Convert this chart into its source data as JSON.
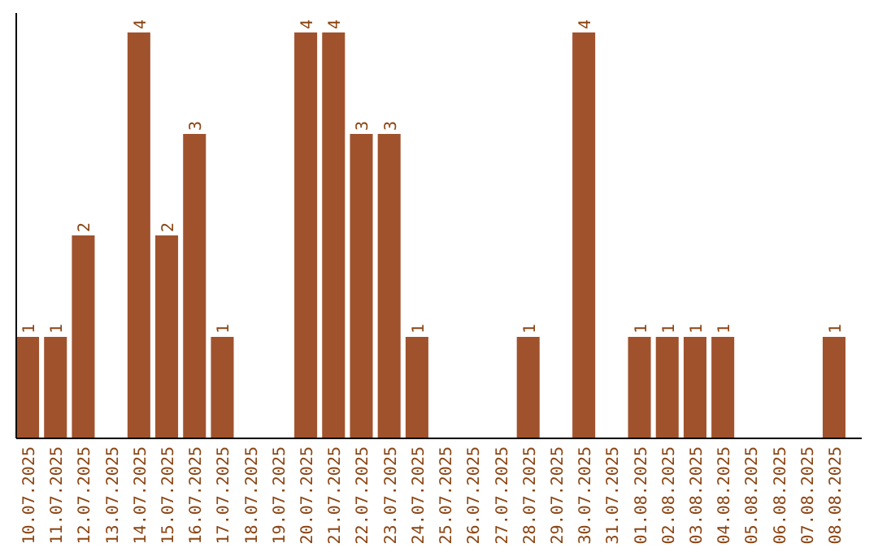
{
  "chart_data": {
    "type": "bar",
    "categories": [
      "10.07.2025",
      "11.07.2025",
      "12.07.2025",
      "13.07.2025",
      "14.07.2025",
      "15.07.2025",
      "16.07.2025",
      "17.07.2025",
      "18.07.2025",
      "19.07.2025",
      "20.07.2025",
      "21.07.2025",
      "22.07.2025",
      "23.07.2025",
      "24.07.2025",
      "25.07.2025",
      "26.07.2025",
      "27.07.2025",
      "28.07.2025",
      "29.07.2025",
      "30.07.2025",
      "31.07.2025",
      "01.08.2025",
      "02.08.2025",
      "03.08.2025",
      "04.08.2025",
      "05.08.2025",
      "06.08.2025",
      "07.08.2025",
      "08.08.2025"
    ],
    "values": [
      1,
      1,
      2,
      null,
      4,
      2,
      3,
      1,
      null,
      null,
      4,
      4,
      3,
      3,
      1,
      null,
      null,
      null,
      1,
      null,
      4,
      null,
      1,
      1,
      1,
      1,
      null,
      null,
      null,
      1
    ],
    "color": "#a0522d",
    "relative": false,
    "data_labels": true
  }
}
